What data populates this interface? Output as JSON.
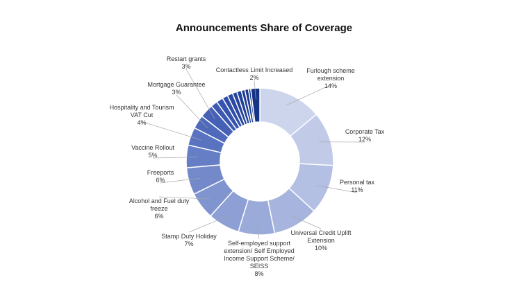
{
  "chart_data": {
    "type": "pie",
    "donut": true,
    "title": "Announcements Share of Coverage",
    "legend": "none",
    "start_angle_deg": 0,
    "slices": [
      {
        "label": [
          "Furlough scheme",
          "extension"
        ],
        "pct_label": "14%",
        "value": 14,
        "color": "#cdd5ec"
      },
      {
        "label": [
          "Corporate Tax"
        ],
        "pct_label": "12%",
        "value": 12,
        "color": "#c1cbe8"
      },
      {
        "label": [
          "Personal tax"
        ],
        "pct_label": "11%",
        "value": 11,
        "color": "#b4c0e3"
      },
      {
        "label": [
          "Universal Credit Uplift",
          "Extension"
        ],
        "pct_label": "10%",
        "value": 10,
        "color": "#a7b5de"
      },
      {
        "label": [
          "Self-employed support",
          "extension/ Self Employed",
          "Income Support Scheme/",
          "SEISS"
        ],
        "pct_label": "8%",
        "value": 8,
        "color": "#9aaad9"
      },
      {
        "label": [
          "Stamp Duty Holiday"
        ],
        "pct_label": "7%",
        "value": 7,
        "color": "#8d9fd4"
      },
      {
        "label": [
          "Alcohol and Fuel duty",
          "freeze"
        ],
        "pct_label": "6%",
        "value": 6,
        "color": "#8094cf"
      },
      {
        "label": [
          "Freeports"
        ],
        "pct_label": "6%",
        "value": 6,
        "color": "#7389ca"
      },
      {
        "label": [
          "Vaccine Rollout"
        ],
        "pct_label": "5%",
        "value": 5,
        "color": "#667ec5"
      },
      {
        "label": [
          "Hospitality and Tourism",
          "VAT Cut"
        ],
        "pct_label": "4%",
        "value": 4,
        "color": "#5a73c0"
      },
      {
        "label": [
          "Mortgage Guarantee"
        ],
        "pct_label": "3%",
        "value": 3,
        "color": "#4f69bb"
      },
      {
        "label": [
          "Restart grants"
        ],
        "pct_label": "3%",
        "value": 3,
        "color": "#4560b7"
      },
      {
        "label": [],
        "pct_label": "",
        "value": 1.5,
        "color": "#3d59b2"
      },
      {
        "label": [],
        "pct_label": "",
        "value": 1.5,
        "color": "#3653ad"
      },
      {
        "label": [],
        "pct_label": "",
        "value": 1.2,
        "color": "#304ea8"
      },
      {
        "label": [],
        "pct_label": "",
        "value": 1.2,
        "color": "#2b49a3"
      },
      {
        "label": [],
        "pct_label": "",
        "value": 1.0,
        "color": "#26459e"
      },
      {
        "label": [],
        "pct_label": "",
        "value": 1.0,
        "color": "#224199"
      },
      {
        "label": [],
        "pct_label": "",
        "value": 0.8,
        "color": "#1e3d94"
      },
      {
        "label": [],
        "pct_label": "",
        "value": 0.8,
        "color": "#1b3a90"
      },
      {
        "label": [],
        "pct_label": "",
        "value": 0.5,
        "color": "#18378b"
      },
      {
        "label": [
          "Contactless Limit Increased"
        ],
        "pct_label": "2%",
        "value": 2,
        "color": "#153486"
      }
    ]
  }
}
